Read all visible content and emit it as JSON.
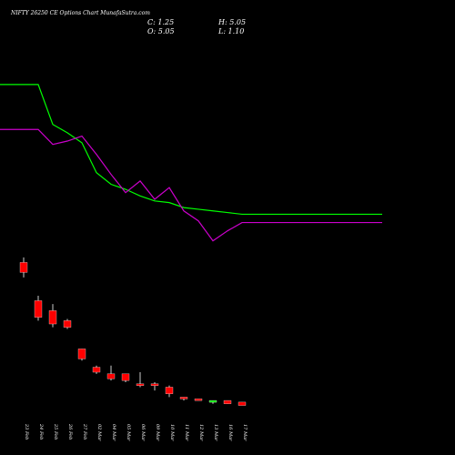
{
  "header": {
    "title": "NIFTY 26250  CE Options  Chart MunafaSutra.com",
    "close": "C: 1.25",
    "open": "O: 5.05",
    "high": "H: 5.05",
    "low": "L: 1.10"
  },
  "colors": {
    "background": "#000000",
    "up_candle": "#00ff00",
    "down_candle": "#ff0000",
    "ma_fast": "#00ff00",
    "ma_slow": "#cc00cc",
    "wick": "#ffffff",
    "text": "#ffffff"
  },
  "chart_data": {
    "type": "candlestick",
    "categories": [
      "23 Feb",
      "24 Feb",
      "25 Feb",
      "26 Feb",
      "27 Feb",
      "02 Mar",
      "04 Mar",
      "05 Mar",
      "06 Mar",
      "09 Mar",
      "10 Mar",
      "11 Mar",
      "12 Mar",
      "13 Mar",
      "16 Mar",
      "17 Mar"
    ],
    "series": [
      {
        "type": "candlestick",
        "open": [
          95,
          72,
          66,
          60,
          43,
          32,
          28,
          28,
          22,
          22,
          20,
          14,
          13,
          11,
          12,
          11
        ],
        "high": [
          98,
          75,
          70,
          61,
          43,
          33,
          33,
          28,
          29,
          23,
          21,
          14,
          13,
          12,
          12,
          11
        ],
        "low": [
          86,
          60,
          56,
          55,
          36,
          28,
          24,
          23,
          20,
          18,
          14,
          12,
          12,
          10,
          10,
          9
        ],
        "close": [
          89,
          62,
          58,
          56,
          37,
          29,
          25,
          24,
          21,
          21,
          16,
          13,
          12,
          12,
          10,
          9
        ]
      },
      {
        "type": "line",
        "values": [
          202,
          202,
          178,
          173,
          167,
          149,
          142,
          139,
          135,
          132,
          131,
          128,
          127,
          126,
          125,
          124
        ]
      },
      {
        "type": "line",
        "values": [
          175,
          175,
          166,
          168,
          171,
          160,
          148,
          137,
          144,
          133,
          140,
          126,
          120,
          108,
          114,
          119
        ]
      }
    ],
    "ylim": [
      0,
      220
    ]
  }
}
